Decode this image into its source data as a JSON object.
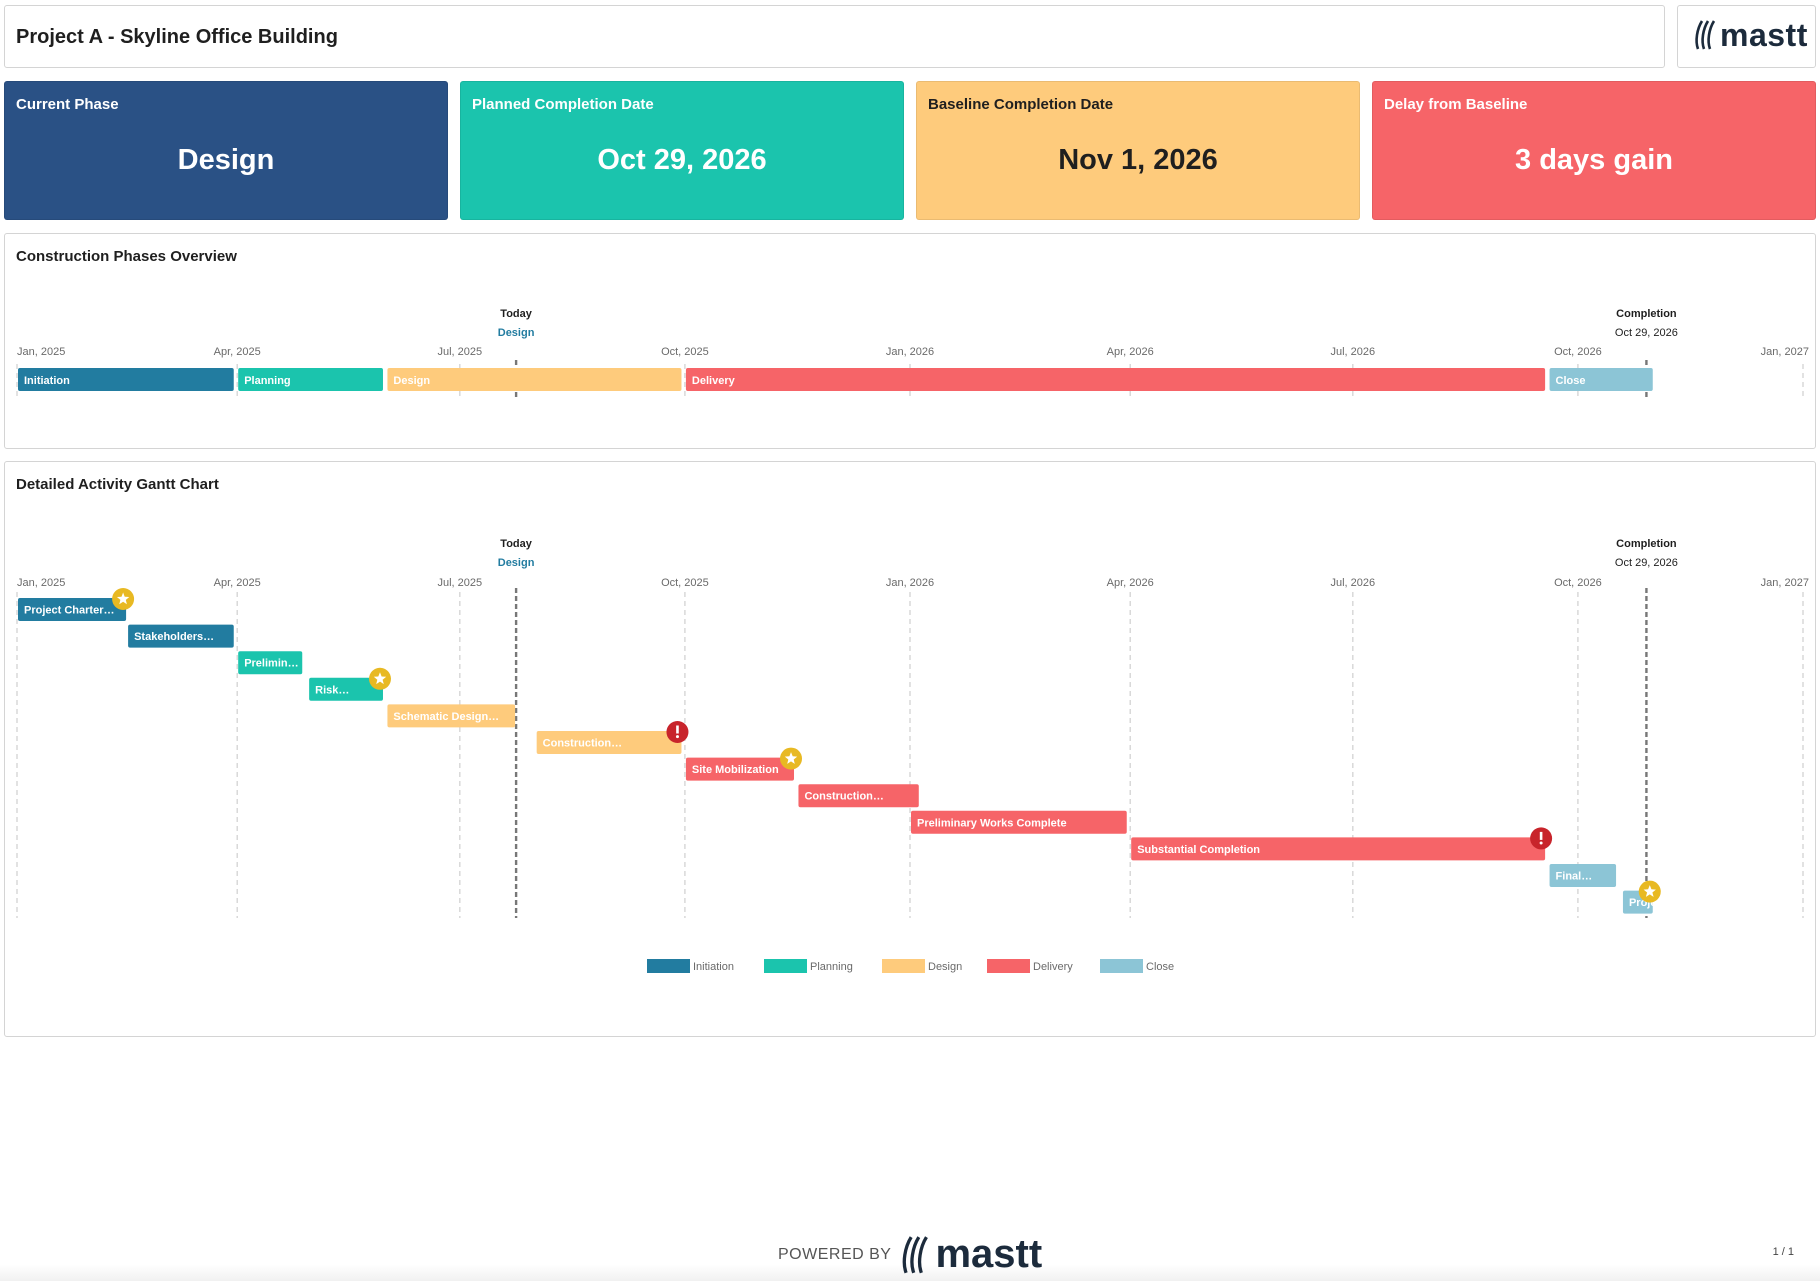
{
  "header": {
    "title": "Project A - Skyline Office Building",
    "logo_text": "mastt"
  },
  "kpis": [
    {
      "label": "Current Phase",
      "value": "Design",
      "bg": "#2a5185",
      "fg": "#ffffff"
    },
    {
      "label": "Planned Completion Date",
      "value": "Oct 29, 2026",
      "bg": "#1bc4ad",
      "fg": "#ffffff"
    },
    {
      "label": "Baseline Completion Date",
      "value": "Nov 1, 2026",
      "bg": "#fecb7c",
      "fg": "#1f1f1f"
    },
    {
      "label": "Delay from Baseline",
      "value": "3 days gain",
      "bg": "#f66468",
      "fg": "#ffffff"
    }
  ],
  "phase_panel": {
    "title": "Construction Phases Overview"
  },
  "gantt_panel": {
    "title": "Detailed Activity Gantt Chart"
  },
  "footer": {
    "powered_by": "POWERED BY",
    "logo_text": "mastt",
    "page": "1 / 1"
  },
  "colors": {
    "Initiation": "#227ca0",
    "Planning": "#1bc4ad",
    "Design": "#fecb7c",
    "Delivery": "#f66468",
    "Close": "#8cc5d6",
    "star": "#e8b923",
    "alert": "#c8242b",
    "today_label": "#227ca0"
  },
  "chart_data": [
    {
      "type": "gantt",
      "title": "Construction Phases Overview",
      "x_range": [
        "2025-01-01",
        "2027-01-01"
      ],
      "ticks": [
        {
          "date": "2025-01-01",
          "label": "Jan, 2025"
        },
        {
          "date": "2025-04-01",
          "label": "Apr, 2025"
        },
        {
          "date": "2025-07-01",
          "label": "Jul, 2025"
        },
        {
          "date": "2025-10-01",
          "label": "Oct, 2025"
        },
        {
          "date": "2026-01-01",
          "label": "Jan, 2026"
        },
        {
          "date": "2026-04-01",
          "label": "Apr, 2026"
        },
        {
          "date": "2026-07-01",
          "label": "Jul, 2026"
        },
        {
          "date": "2026-10-01",
          "label": "Oct, 2026"
        },
        {
          "date": "2027-01-01",
          "label": "Jan, 2027"
        }
      ],
      "markers": [
        {
          "date": "2025-07-24",
          "title": "Today",
          "subtitle": "Design"
        },
        {
          "date": "2026-10-29",
          "title": "Completion",
          "subtitle": "Oct 29, 2026"
        }
      ],
      "phases": [
        {
          "name": "Initiation",
          "start": "2025-01-01",
          "end": "2025-03-31"
        },
        {
          "name": "Planning",
          "start": "2025-04-01",
          "end": "2025-05-31"
        },
        {
          "name": "Design",
          "start": "2025-06-01",
          "end": "2025-09-30"
        },
        {
          "name": "Delivery",
          "start": "2025-10-01",
          "end": "2026-09-18"
        },
        {
          "name": "Close",
          "start": "2026-09-19",
          "end": "2026-11-01"
        }
      ]
    },
    {
      "type": "gantt",
      "title": "Detailed Activity Gantt Chart",
      "x_range": [
        "2025-01-01",
        "2027-01-01"
      ],
      "activities": [
        {
          "label": "Project Charter…",
          "phase": "Initiation",
          "start": "2025-01-01",
          "end": "2025-02-15",
          "marker": "star"
        },
        {
          "label": "Stakeholders…",
          "phase": "Initiation",
          "start": "2025-02-15",
          "end": "2025-03-31",
          "marker": ""
        },
        {
          "label": "Prelimin…",
          "phase": "Planning",
          "start": "2025-04-01",
          "end": "2025-04-28",
          "marker": ""
        },
        {
          "label": "Risk…",
          "phase": "Planning",
          "start": "2025-04-30",
          "end": "2025-05-31",
          "marker": "star"
        },
        {
          "label": "Schematic Design…",
          "phase": "Design",
          "start": "2025-06-01",
          "end": "2025-07-24",
          "marker": ""
        },
        {
          "label": "Construction…",
          "phase": "Design",
          "start": "2025-08-01",
          "end": "2025-09-30",
          "marker": "alert"
        },
        {
          "label": "Site Mobilization",
          "phase": "Delivery",
          "start": "2025-10-01",
          "end": "2025-11-15",
          "marker": "star"
        },
        {
          "label": "Construction…",
          "phase": "Delivery",
          "start": "2025-11-16",
          "end": "2026-01-05",
          "marker": ""
        },
        {
          "label": "Preliminary Works Complete",
          "phase": "Delivery",
          "start": "2026-01-01",
          "end": "2026-03-31",
          "marker": ""
        },
        {
          "label": "Substantial Completion",
          "phase": "Delivery",
          "start": "2026-04-01",
          "end": "2026-09-18",
          "marker": "alert"
        },
        {
          "label": "Final…",
          "phase": "Close",
          "start": "2026-09-19",
          "end": "2026-10-17",
          "marker": ""
        },
        {
          "label": "Project…",
          "phase": "Close",
          "start": "2026-10-19",
          "end": "2026-11-01",
          "marker": "star"
        }
      ],
      "legend": [
        "Initiation",
        "Planning",
        "Design",
        "Delivery",
        "Close"
      ]
    }
  ]
}
